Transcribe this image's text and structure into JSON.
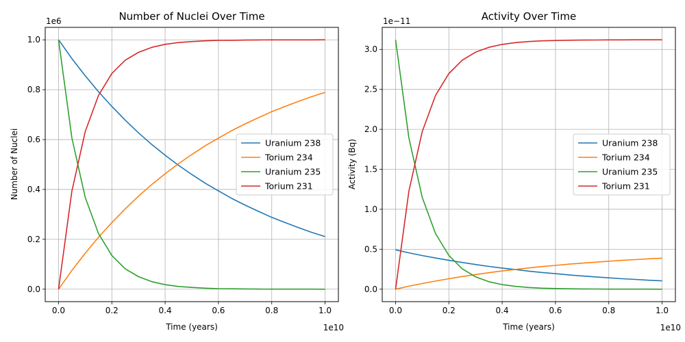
{
  "chart_data": [
    {
      "type": "line",
      "title": "Number of Nuclei Over Time",
      "xlabel": "Time (years)",
      "ylabel": "Number of Nuclei",
      "x_offset_label": "1e10",
      "y_offset_label": "1e6",
      "xlim": [
        -0.05,
        1.05
      ],
      "ylim": [
        -0.05,
        1.05
      ],
      "xticks": [
        0,
        0.2,
        0.4,
        0.6,
        0.8,
        1.0
      ],
      "xtick_labels": [
        "0.0",
        "0.2",
        "0.4",
        "0.6",
        "0.8",
        "1.0"
      ],
      "yticks": [
        0,
        0.2,
        0.4,
        0.6,
        0.8,
        1.0
      ],
      "ytick_labels": [
        "0.0",
        "0.2",
        "0.4",
        "0.6",
        "0.8",
        "1.0"
      ],
      "grid": true,
      "legend_position": "center-right",
      "x": [
        0,
        0.05,
        0.1,
        0.15,
        0.2,
        0.25,
        0.3,
        0.35,
        0.4,
        0.45,
        0.5,
        0.55,
        0.6,
        0.65,
        0.7,
        0.75,
        0.8,
        0.85,
        0.9,
        0.95,
        1.0
      ],
      "series": [
        {
          "name": "Uranium 238",
          "color": "#1f77b4",
          "values": [
            1.0,
            0.925,
            0.856,
            0.792,
            0.733,
            0.678,
            0.627,
            0.58,
            0.537,
            0.497,
            0.46,
            0.425,
            0.394,
            0.364,
            0.337,
            0.312,
            0.288,
            0.267,
            0.247,
            0.228,
            0.211
          ]
        },
        {
          "name": "Torium 234",
          "color": "#ff7f0e",
          "values": [
            0.0,
            0.075,
            0.144,
            0.208,
            0.267,
            0.322,
            0.373,
            0.42,
            0.463,
            0.503,
            0.54,
            0.575,
            0.606,
            0.636,
            0.663,
            0.688,
            0.712,
            0.733,
            0.753,
            0.772,
            0.789
          ]
        },
        {
          "name": "Uranium 235",
          "color": "#2ca02c",
          "values": [
            1.0,
            0.607,
            0.368,
            0.223,
            0.135,
            0.082,
            0.05,
            0.03,
            0.018,
            0.011,
            0.007,
            0.004,
            0.002,
            0.0015,
            0.0009,
            0.0006,
            0.0003,
            0.0002,
            0.0001,
            0.0001,
            0.0
          ]
        },
        {
          "name": "Torium 231",
          "color": "#d62728",
          "values": [
            0.0,
            0.393,
            0.632,
            0.777,
            0.865,
            0.918,
            0.95,
            0.97,
            0.982,
            0.989,
            0.993,
            0.996,
            0.998,
            0.998,
            0.999,
            0.9994,
            0.9997,
            0.9998,
            0.9999,
            0.9999,
            1.0
          ]
        }
      ]
    },
    {
      "type": "line",
      "title": "Activity Over Time",
      "xlabel": "Time (years)",
      "ylabel": "Activity (Bq)",
      "x_offset_label": "1e10",
      "y_offset_label": "1e−11",
      "xlim": [
        -0.05,
        1.05
      ],
      "ylim": [
        -0.156,
        3.276
      ],
      "xticks": [
        0,
        0.2,
        0.4,
        0.6,
        0.8,
        1.0
      ],
      "xtick_labels": [
        "0.0",
        "0.2",
        "0.4",
        "0.6",
        "0.8",
        "1.0"
      ],
      "yticks": [
        0,
        0.5,
        1.0,
        1.5,
        2.0,
        2.5,
        3.0
      ],
      "ytick_labels": [
        "0.0",
        "0.5",
        "1.0",
        "1.5",
        "2.0",
        "2.5",
        "3.0"
      ],
      "grid": true,
      "legend_position": "center-right",
      "x": [
        0,
        0.05,
        0.1,
        0.15,
        0.2,
        0.25,
        0.3,
        0.35,
        0.4,
        0.45,
        0.5,
        0.55,
        0.6,
        0.65,
        0.7,
        0.75,
        0.8,
        0.85,
        0.9,
        0.95,
        1.0
      ],
      "series": [
        {
          "name": "Uranium 238",
          "color": "#1f77b4",
          "values": [
            0.492,
            0.455,
            0.421,
            0.39,
            0.361,
            0.334,
            0.309,
            0.285,
            0.264,
            0.245,
            0.226,
            0.209,
            0.194,
            0.179,
            0.166,
            0.154,
            0.142,
            0.131,
            0.122,
            0.112,
            0.104
          ]
        },
        {
          "name": "Torium 234",
          "color": "#ff7f0e",
          "values": [
            0.0,
            0.037,
            0.071,
            0.102,
            0.131,
            0.158,
            0.183,
            0.206,
            0.228,
            0.247,
            0.266,
            0.283,
            0.298,
            0.313,
            0.326,
            0.338,
            0.35,
            0.361,
            0.37,
            0.38,
            0.388
          ]
        },
        {
          "name": "Uranium 235",
          "color": "#2ca02c",
          "values": [
            3.12,
            1.894,
            1.148,
            0.696,
            0.422,
            0.256,
            0.155,
            0.094,
            0.057,
            0.035,
            0.021,
            0.013,
            0.008,
            0.005,
            0.003,
            0.002,
            0.001,
            0.0006,
            0.0004,
            0.0002,
            0.0
          ]
        },
        {
          "name": "Torium 231",
          "color": "#d62728",
          "values": [
            0.0,
            1.226,
            1.972,
            2.424,
            2.698,
            2.864,
            2.965,
            3.026,
            3.063,
            3.085,
            3.099,
            3.107,
            3.112,
            3.115,
            3.117,
            3.118,
            3.119,
            3.119,
            3.12,
            3.12,
            3.12
          ]
        }
      ]
    }
  ]
}
